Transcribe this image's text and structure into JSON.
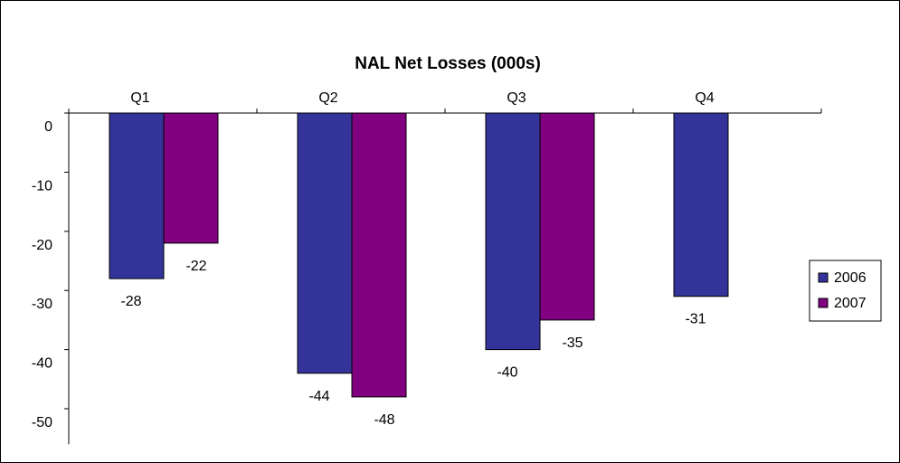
{
  "chart_data": {
    "type": "bar",
    "title": "NAL Net Losses (000s)",
    "xlabel": "",
    "ylabel": "",
    "categories": [
      "Q1",
      "Q2",
      "Q3",
      "Q4"
    ],
    "series": [
      {
        "name": "2006",
        "color": "#333399",
        "values": [
          -28,
          -44,
          -40,
          -31
        ]
      },
      {
        "name": "2007",
        "color": "#800080",
        "values": [
          -22,
          -48,
          -35,
          null
        ]
      }
    ],
    "ylim": [
      -56,
      0
    ],
    "yticks": [
      0,
      -10,
      -20,
      -30,
      -40,
      -50
    ],
    "x_axis_position": "top",
    "grid": false,
    "legend": "right",
    "data_labels": true
  }
}
